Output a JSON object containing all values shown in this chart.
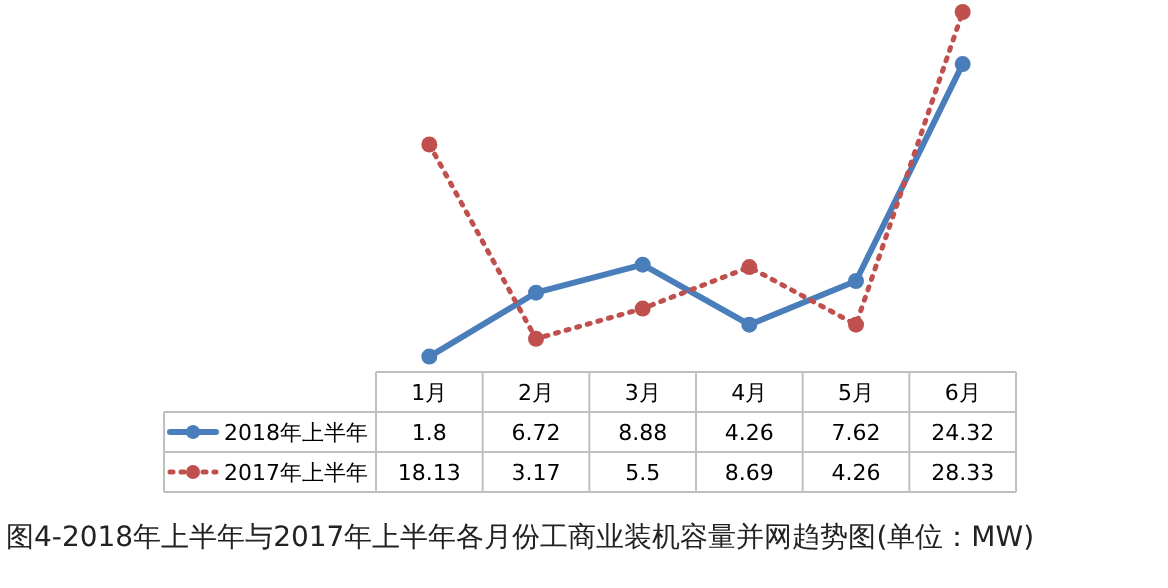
{
  "chart_data": {
    "type": "line",
    "title": "图4-2018年上半年与2017年上半年各月份工商业装机容量并网趋势图(单位：MW)",
    "categories": [
      "1月",
      "2月",
      "3月",
      "4月",
      "5月",
      "6月"
    ],
    "series": [
      {
        "name": "2018年上半年",
        "color": "#4a7ebb",
        "values": [
          1.8,
          6.72,
          8.88,
          4.26,
          7.62,
          24.32
        ],
        "line_style": "solid"
      },
      {
        "name": "2017年上半年",
        "color": "#c0504d",
        "values": [
          18.13,
          3.17,
          5.5,
          8.69,
          4.26,
          28.33
        ],
        "line_style": "dotted"
      }
    ],
    "data_labels": true,
    "marker": "circle",
    "legend": "bottom left"
  }
}
